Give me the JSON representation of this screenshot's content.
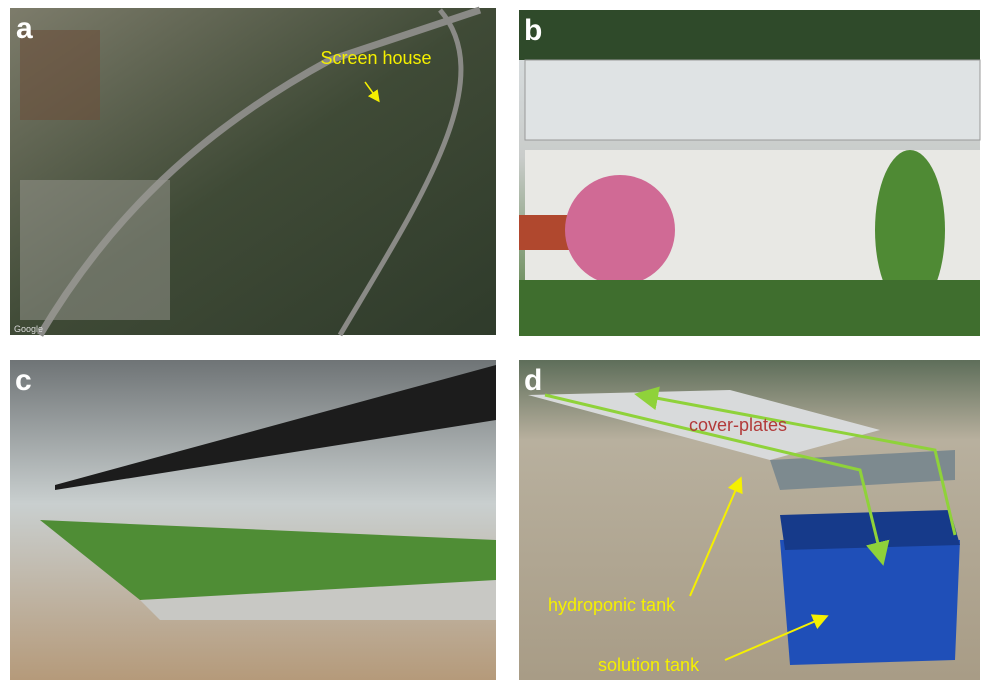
{
  "panels": [
    {
      "label": "a",
      "annotations": [
        "Screen house"
      ],
      "credit": "Google"
    },
    {
      "label": "b"
    },
    {
      "label": "c"
    },
    {
      "label": "d",
      "annotations": [
        "cover-plates",
        "hydroponic tank",
        "solution tank"
      ]
    }
  ]
}
